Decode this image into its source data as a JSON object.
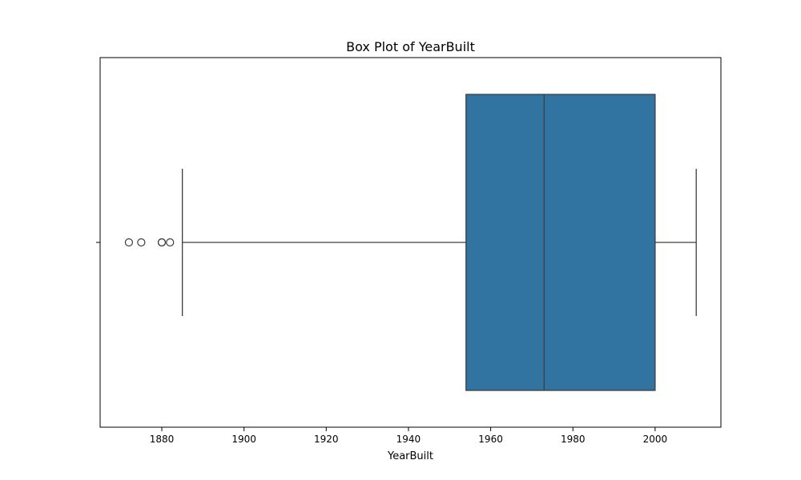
{
  "chart_data": {
    "type": "box",
    "title": "Box Plot of YearBuilt",
    "xlabel": "YearBuilt",
    "ylabel": "",
    "orientation": "horizontal",
    "xlim": [
      1865,
      2016
    ],
    "xticks": [
      1880,
      1900,
      1920,
      1940,
      1960,
      1980,
      2000
    ],
    "grid": false,
    "legend": "none",
    "box": {
      "q1": 1954,
      "median": 1973,
      "q3": 2000,
      "whisker_low": 1885,
      "whisker_high": 2010,
      "outliers": [
        1872,
        1875,
        1880,
        1880,
        1882
      ],
      "fill_color": "#3274a1",
      "line_color": "#3d3d3d"
    }
  }
}
